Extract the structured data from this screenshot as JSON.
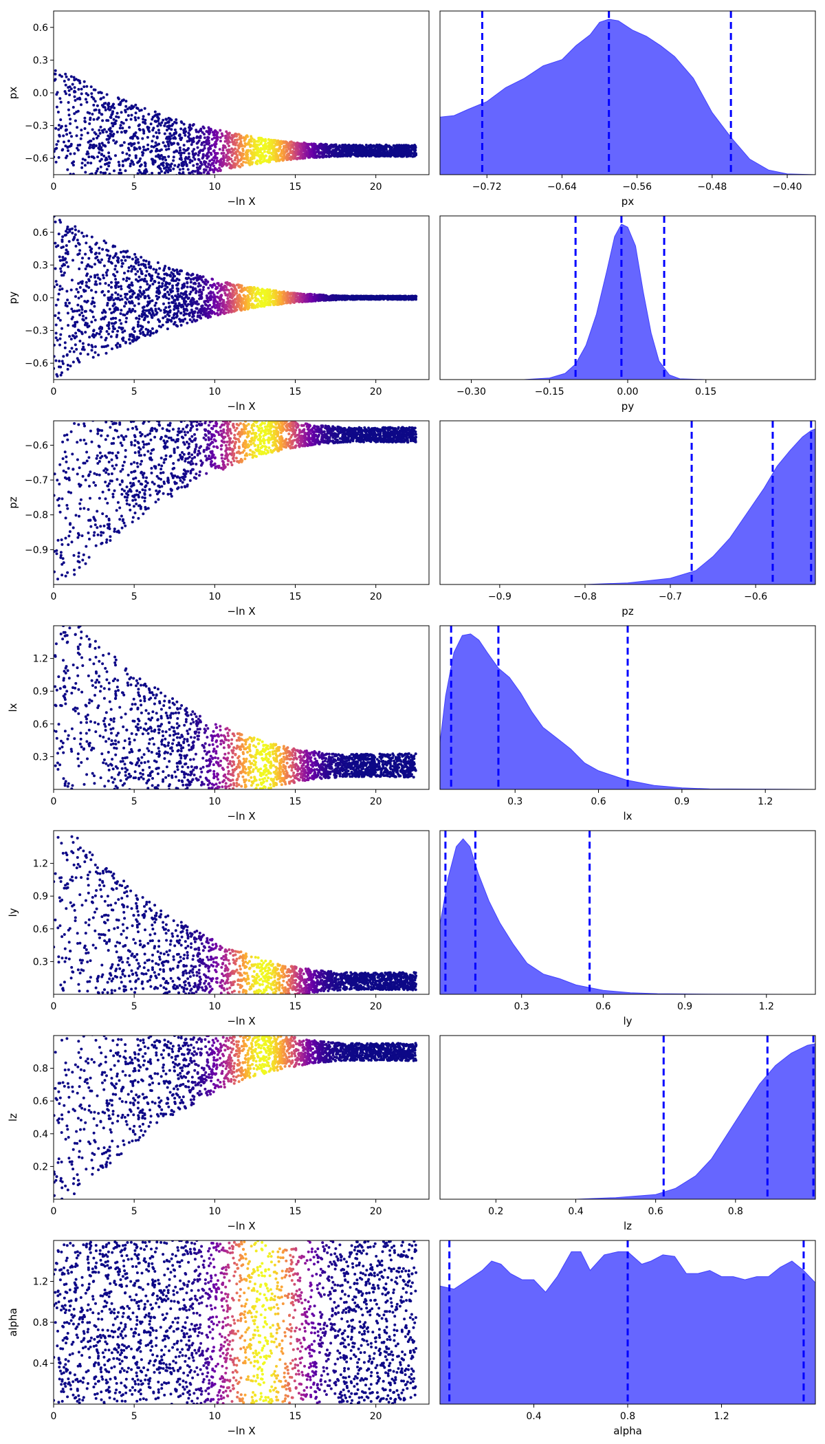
{
  "chart_data": {
    "type": "scatter",
    "x_label_trace": "−ln X",
    "trace_x_range": [
      0,
      23.3
    ],
    "trace_x_ticks": [
      0,
      5,
      10,
      15,
      20
    ],
    "colormap": "plasma",
    "colormap_stops": [
      "#0d0887",
      "#6a00a8",
      "#b12a90",
      "#e16462",
      "#fca636",
      "#f0f921"
    ],
    "weight_peak_x": 13.0,
    "quantile_line_color": "#0000ff",
    "kde_fill_color": "#6666ff",
    "params": [
      {
        "name": "px",
        "trace_ylim": [
          -0.75,
          0.75
        ],
        "trace_yticks": [
          "0.6",
          "0.3",
          "0.0",
          "−0.3",
          "−0.6"
        ],
        "trace_yticks_values": [
          0.6,
          0.3,
          0.0,
          -0.3,
          -0.6
        ],
        "converged_value": -0.53,
        "start_spread": 0.75,
        "late_spread": 0.1,
        "hist_xlim": [
          -0.77,
          -0.37
        ],
        "hist_xticks": [
          "−0.72",
          "−0.64",
          "−0.56",
          "−0.48",
          "−0.40"
        ],
        "hist_xticks_values": [
          -0.72,
          -0.64,
          -0.56,
          -0.48,
          -0.4
        ],
        "quantiles": [
          -0.725,
          -0.59,
          -0.46
        ],
        "kde": [
          [
            -0.77,
            0.37
          ],
          [
            -0.755,
            0.38
          ],
          [
            -0.74,
            0.42
          ],
          [
            -0.72,
            0.47
          ],
          [
            -0.7,
            0.56
          ],
          [
            -0.68,
            0.62
          ],
          [
            -0.66,
            0.7
          ],
          [
            -0.64,
            0.74
          ],
          [
            -0.625,
            0.83
          ],
          [
            -0.61,
            0.9
          ],
          [
            -0.6,
            0.98
          ],
          [
            -0.59,
            1.0
          ],
          [
            -0.58,
            0.99
          ],
          [
            -0.565,
            0.93
          ],
          [
            -0.55,
            0.89
          ],
          [
            -0.535,
            0.83
          ],
          [
            -0.52,
            0.76
          ],
          [
            -0.5,
            0.62
          ],
          [
            -0.48,
            0.4
          ],
          [
            -0.46,
            0.24
          ],
          [
            -0.44,
            0.1
          ],
          [
            -0.42,
            0.03
          ],
          [
            -0.4,
            0.005
          ],
          [
            -0.37,
            0.0
          ]
        ]
      },
      {
        "name": "py",
        "trace_ylim": [
          -0.75,
          0.75
        ],
        "trace_yticks": [
          "0.6",
          "0.3",
          "0.0",
          "−0.3",
          "−0.6"
        ],
        "trace_yticks_values": [
          0.6,
          0.3,
          0.0,
          -0.3,
          -0.6
        ],
        "converged_value": 0.0,
        "start_spread": 0.75,
        "late_spread": 0.03,
        "hist_xlim": [
          -0.36,
          0.36
        ],
        "hist_xticks": [
          "−0.30",
          "−0.15",
          "0.00",
          "0.15"
        ],
        "hist_xticks_values": [
          -0.3,
          -0.15,
          0.0,
          0.15
        ],
        "quantiles": [
          -0.1,
          -0.012,
          0.07
        ],
        "kde": [
          [
            -0.36,
            0.0
          ],
          [
            -0.2,
            0.0
          ],
          [
            -0.15,
            0.01
          ],
          [
            -0.12,
            0.04
          ],
          [
            -0.1,
            0.1
          ],
          [
            -0.08,
            0.22
          ],
          [
            -0.06,
            0.42
          ],
          [
            -0.04,
            0.7
          ],
          [
            -0.025,
            0.92
          ],
          [
            -0.012,
            1.0
          ],
          [
            0.0,
            0.98
          ],
          [
            0.015,
            0.86
          ],
          [
            0.03,
            0.56
          ],
          [
            0.045,
            0.3
          ],
          [
            0.06,
            0.12
          ],
          [
            0.08,
            0.03
          ],
          [
            0.1,
            0.005
          ],
          [
            0.15,
            0.0
          ],
          [
            0.36,
            0.0
          ]
        ]
      },
      {
        "name": "pz",
        "trace_ylim": [
          -1.0,
          -0.53
        ],
        "trace_yticks": [
          "−0.6",
          "−0.7",
          "−0.8",
          "−0.9"
        ],
        "trace_yticks_values": [
          -0.6,
          -0.7,
          -0.8,
          -0.9
        ],
        "converged_value": -0.57,
        "start_spread": 0.45,
        "late_spread": 0.04,
        "hist_xlim": [
          -0.97,
          -0.53
        ],
        "hist_xticks": [
          "−0.9",
          "−0.8",
          "−0.7",
          "−0.6"
        ],
        "hist_xticks_values": [
          -0.9,
          -0.8,
          -0.7,
          -0.6
        ],
        "quantiles": [
          -0.675,
          -0.58,
          -0.535
        ],
        "kde": [
          [
            -0.97,
            0.0
          ],
          [
            -0.8,
            0.0
          ],
          [
            -0.75,
            0.01
          ],
          [
            -0.7,
            0.04
          ],
          [
            -0.67,
            0.09
          ],
          [
            -0.65,
            0.18
          ],
          [
            -0.63,
            0.3
          ],
          [
            -0.61,
            0.46
          ],
          [
            -0.59,
            0.62
          ],
          [
            -0.575,
            0.76
          ],
          [
            -0.56,
            0.86
          ],
          [
            -0.545,
            0.95
          ],
          [
            -0.535,
            0.99
          ],
          [
            -0.53,
            1.0
          ]
        ]
      },
      {
        "name": "lx",
        "trace_ylim": [
          0.0,
          1.5
        ],
        "trace_yticks": [
          "1.2",
          "0.9",
          "0.6",
          "0.3"
        ],
        "trace_yticks_values": [
          1.2,
          0.9,
          0.6,
          0.3
        ],
        "converged_value": 0.22,
        "start_spread": 1.5,
        "late_spread": 0.2,
        "hist_xlim": [
          0.03,
          1.38
        ],
        "hist_xticks": [
          "0.3",
          "0.6",
          "0.9",
          "1.2"
        ],
        "hist_xticks_values": [
          0.3,
          0.6,
          0.9,
          1.2
        ],
        "quantiles": [
          0.07,
          0.24,
          0.705
        ],
        "kde": [
          [
            0.03,
            0.3
          ],
          [
            0.05,
            0.6
          ],
          [
            0.08,
            0.88
          ],
          [
            0.11,
            0.99
          ],
          [
            0.14,
            1.0
          ],
          [
            0.17,
            0.96
          ],
          [
            0.2,
            0.88
          ],
          [
            0.24,
            0.78
          ],
          [
            0.28,
            0.72
          ],
          [
            0.32,
            0.62
          ],
          [
            0.36,
            0.5
          ],
          [
            0.4,
            0.4
          ],
          [
            0.45,
            0.33
          ],
          [
            0.5,
            0.26
          ],
          [
            0.55,
            0.17
          ],
          [
            0.6,
            0.12
          ],
          [
            0.7,
            0.06
          ],
          [
            0.8,
            0.025
          ],
          [
            0.9,
            0.01
          ],
          [
            1.0,
            0.003
          ],
          [
            1.38,
            0.0
          ]
        ]
      },
      {
        "name": "ly",
        "trace_ylim": [
          0.0,
          1.5
        ],
        "trace_yticks": [
          "1.2",
          "0.9",
          "0.6",
          "0.3"
        ],
        "trace_yticks_values": [
          1.2,
          0.9,
          0.6,
          0.3
        ],
        "converged_value": 0.12,
        "start_spread": 1.5,
        "late_spread": 0.15,
        "hist_xlim": [
          0.0,
          1.38
        ],
        "hist_xticks": [
          "0.3",
          "0.6",
          "0.9",
          "1.2"
        ],
        "hist_xticks_values": [
          0.3,
          0.6,
          0.9,
          1.2
        ],
        "quantiles": [
          0.02,
          0.13,
          0.55
        ],
        "kde": [
          [
            0.0,
            0.45
          ],
          [
            0.03,
            0.75
          ],
          [
            0.06,
            0.95
          ],
          [
            0.085,
            1.0
          ],
          [
            0.11,
            0.95
          ],
          [
            0.14,
            0.78
          ],
          [
            0.18,
            0.6
          ],
          [
            0.22,
            0.46
          ],
          [
            0.27,
            0.32
          ],
          [
            0.32,
            0.2
          ],
          [
            0.38,
            0.13
          ],
          [
            0.44,
            0.1
          ],
          [
            0.5,
            0.06
          ],
          [
            0.6,
            0.025
          ],
          [
            0.7,
            0.01
          ],
          [
            0.8,
            0.004
          ],
          [
            1.0,
            0.001
          ],
          [
            1.38,
            0.0
          ]
        ]
      },
      {
        "name": "lz",
        "trace_ylim": [
          0.0,
          1.0
        ],
        "trace_yticks": [
          "0.8",
          "0.6",
          "0.4",
          "0.2"
        ],
        "trace_yticks_values": [
          0.8,
          0.6,
          0.4,
          0.2
        ],
        "converged_value": 0.9,
        "start_spread": 1.0,
        "late_spread": 0.1,
        "hist_xlim": [
          0.06,
          1.0
        ],
        "hist_xticks": [
          "0.2",
          "0.4",
          "0.6",
          "0.8"
        ],
        "hist_xticks_values": [
          0.2,
          0.4,
          0.6,
          0.8
        ],
        "quantiles": [
          0.62,
          0.88,
          0.995
        ],
        "kde": [
          [
            0.06,
            0.0
          ],
          [
            0.4,
            0.0
          ],
          [
            0.5,
            0.01
          ],
          [
            0.6,
            0.03
          ],
          [
            0.65,
            0.07
          ],
          [
            0.7,
            0.15
          ],
          [
            0.74,
            0.26
          ],
          [
            0.78,
            0.42
          ],
          [
            0.82,
            0.58
          ],
          [
            0.86,
            0.74
          ],
          [
            0.9,
            0.86
          ],
          [
            0.94,
            0.94
          ],
          [
            0.98,
            0.99
          ],
          [
            1.0,
            1.0
          ]
        ]
      },
      {
        "name": "alpha",
        "trace_ylim": [
          0.0,
          1.6
        ],
        "trace_yticks": [
          "1.2",
          "0.8",
          "0.4"
        ],
        "trace_yticks_values": [
          1.2,
          0.8,
          0.4
        ],
        "converged_value": 0.8,
        "start_spread": 1.6,
        "late_spread": 1.6,
        "hist_xlim": [
          0.0,
          1.6
        ],
        "hist_xticks": [
          "0.4",
          "0.8",
          "1.2"
        ],
        "hist_xticks_values": [
          0.4,
          0.8,
          1.2
        ],
        "quantiles": [
          0.04,
          0.8,
          1.55
        ],
        "kde": [
          [
            0.0,
            0.76
          ],
          [
            0.06,
            0.74
          ],
          [
            0.12,
            0.8
          ],
          [
            0.18,
            0.86
          ],
          [
            0.22,
            0.92
          ],
          [
            0.26,
            0.9
          ],
          [
            0.3,
            0.84
          ],
          [
            0.35,
            0.8
          ],
          [
            0.4,
            0.8
          ],
          [
            0.45,
            0.72
          ],
          [
            0.5,
            0.82
          ],
          [
            0.56,
            0.98
          ],
          [
            0.6,
            0.98
          ],
          [
            0.64,
            0.86
          ],
          [
            0.7,
            0.96
          ],
          [
            0.76,
            0.98
          ],
          [
            0.8,
            0.98
          ],
          [
            0.86,
            0.9
          ],
          [
            0.9,
            0.92
          ],
          [
            0.95,
            0.96
          ],
          [
            1.0,
            0.95
          ],
          [
            1.05,
            0.84
          ],
          [
            1.1,
            0.84
          ],
          [
            1.15,
            0.86
          ],
          [
            1.2,
            0.82
          ],
          [
            1.25,
            0.82
          ],
          [
            1.3,
            0.8
          ],
          [
            1.35,
            0.82
          ],
          [
            1.4,
            0.82
          ],
          [
            1.45,
            0.88
          ],
          [
            1.5,
            0.92
          ],
          [
            1.55,
            0.86
          ],
          [
            1.6,
            0.78
          ]
        ]
      }
    ]
  }
}
